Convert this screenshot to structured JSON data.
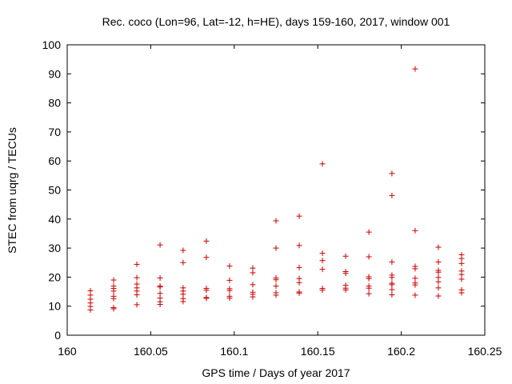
{
  "chart_data": {
    "type": "scatter",
    "title": "Rec. coco (Lon=96, Lat=-12, h=HE), days 159-160, 2017, window 001",
    "xlabel": "GPS time / Days of year 2017",
    "ylabel": "STEC from uqrg / TECUs",
    "xlim": [
      160,
      160.25
    ],
    "ylim": [
      0,
      100
    ],
    "xticks": [
      160,
      160.05,
      160.1,
      160.15,
      160.2,
      160.25
    ],
    "xtick_labels": [
      "160",
      "160.05",
      "160.1",
      "160.15",
      "160.2",
      "160.25"
    ],
    "yticks": [
      0,
      10,
      20,
      30,
      40,
      50,
      60,
      70,
      80,
      90,
      100
    ],
    "ytick_labels": [
      "0",
      "10",
      "20",
      "30",
      "40",
      "50",
      "60",
      "70",
      "80",
      "90",
      "100"
    ],
    "grid": false,
    "marker": "+",
    "color": "#cc0000",
    "points": [
      [
        160.0139,
        15.3
      ],
      [
        160.0139,
        13.8
      ],
      [
        160.0139,
        12.4
      ],
      [
        160.0139,
        11.1
      ],
      [
        160.0139,
        9.9
      ],
      [
        160.0139,
        8.7
      ],
      [
        160.0278,
        19.0
      ],
      [
        160.0278,
        16.9
      ],
      [
        160.0278,
        16.1
      ],
      [
        160.0278,
        15.2
      ],
      [
        160.0278,
        13.4
      ],
      [
        160.0278,
        12.6
      ],
      [
        160.0278,
        9.5
      ],
      [
        160.0278,
        9.1
      ],
      [
        160.0417,
        24.4
      ],
      [
        160.0417,
        19.8
      ],
      [
        160.0417,
        17.6
      ],
      [
        160.0417,
        16.3
      ],
      [
        160.0417,
        15.2
      ],
      [
        160.0417,
        13.9
      ],
      [
        160.0417,
        10.5
      ],
      [
        160.0556,
        31.1
      ],
      [
        160.0556,
        19.7
      ],
      [
        160.0556,
        16.9
      ],
      [
        160.0556,
        16.6
      ],
      [
        160.0556,
        14.4
      ],
      [
        160.0556,
        12.8
      ],
      [
        160.0556,
        11.5
      ],
      [
        160.0556,
        10.6
      ],
      [
        160.0694,
        29.2
      ],
      [
        160.0694,
        25.0
      ],
      [
        160.0694,
        16.3
      ],
      [
        160.0694,
        15.2
      ],
      [
        160.0694,
        14.1
      ],
      [
        160.0694,
        12.6
      ],
      [
        160.0694,
        11.6
      ],
      [
        160.0833,
        32.4
      ],
      [
        160.0833,
        26.8
      ],
      [
        160.0833,
        16.1
      ],
      [
        160.0833,
        15.5
      ],
      [
        160.0833,
        13.0
      ],
      [
        160.0833,
        12.7
      ],
      [
        160.0972,
        23.8
      ],
      [
        160.0972,
        18.9
      ],
      [
        160.0972,
        16.0
      ],
      [
        160.0972,
        15.4
      ],
      [
        160.0972,
        13.4
      ],
      [
        160.0972,
        12.8
      ],
      [
        160.1111,
        23.1
      ],
      [
        160.1111,
        21.5
      ],
      [
        160.1111,
        17.4
      ],
      [
        160.1111,
        14.8
      ],
      [
        160.1111,
        14.1
      ],
      [
        160.1111,
        13.2
      ],
      [
        160.125,
        39.4
      ],
      [
        160.125,
        30.0
      ],
      [
        160.125,
        19.7
      ],
      [
        160.125,
        19.1
      ],
      [
        160.125,
        16.9
      ],
      [
        160.125,
        14.6
      ],
      [
        160.125,
        13.8
      ],
      [
        160.1389,
        41.0
      ],
      [
        160.1389,
        30.9
      ],
      [
        160.1389,
        23.3
      ],
      [
        160.1389,
        19.5
      ],
      [
        160.1389,
        18.1
      ],
      [
        160.1389,
        14.9
      ],
      [
        160.1389,
        14.5
      ],
      [
        160.1528,
        59.0
      ],
      [
        160.1528,
        28.2
      ],
      [
        160.1528,
        25.7
      ],
      [
        160.1528,
        22.7
      ],
      [
        160.1528,
        16.1
      ],
      [
        160.1528,
        15.5
      ],
      [
        160.1667,
        27.2
      ],
      [
        160.1667,
        21.9
      ],
      [
        160.1667,
        21.3
      ],
      [
        160.1667,
        17.2
      ],
      [
        160.1667,
        16.2
      ],
      [
        160.1667,
        15.6
      ],
      [
        160.1806,
        35.5
      ],
      [
        160.1806,
        27.0
      ],
      [
        160.1806,
        20.1
      ],
      [
        160.1806,
        19.5
      ],
      [
        160.1806,
        16.9
      ],
      [
        160.1806,
        16.2
      ],
      [
        160.1806,
        14.3
      ],
      [
        160.1944,
        55.7
      ],
      [
        160.1944,
        48.1
      ],
      [
        160.1944,
        25.2
      ],
      [
        160.1944,
        20.7
      ],
      [
        160.1944,
        19.9
      ],
      [
        160.1944,
        17.9
      ],
      [
        160.1944,
        17.4
      ],
      [
        160.1944,
        15.7
      ],
      [
        160.1944,
        13.9
      ],
      [
        160.2083,
        91.7
      ],
      [
        160.2083,
        36.0
      ],
      [
        160.2083,
        23.7
      ],
      [
        160.2083,
        22.9
      ],
      [
        160.2083,
        19.6
      ],
      [
        160.2083,
        18.0
      ],
      [
        160.2083,
        17.3
      ],
      [
        160.2083,
        13.8
      ],
      [
        160.2222,
        30.3
      ],
      [
        160.2222,
        25.2
      ],
      [
        160.2222,
        22.3
      ],
      [
        160.2222,
        21.7
      ],
      [
        160.2222,
        19.9
      ],
      [
        160.2222,
        18.4
      ],
      [
        160.2222,
        16.3
      ],
      [
        160.2222,
        13.5
      ],
      [
        160.2361,
        27.7
      ],
      [
        160.2361,
        26.4
      ],
      [
        160.2361,
        24.7
      ],
      [
        160.2361,
        22.1
      ],
      [
        160.2361,
        20.9
      ],
      [
        160.2361,
        19.3
      ],
      [
        160.2361,
        15.6
      ],
      [
        160.2361,
        14.6
      ]
    ]
  }
}
